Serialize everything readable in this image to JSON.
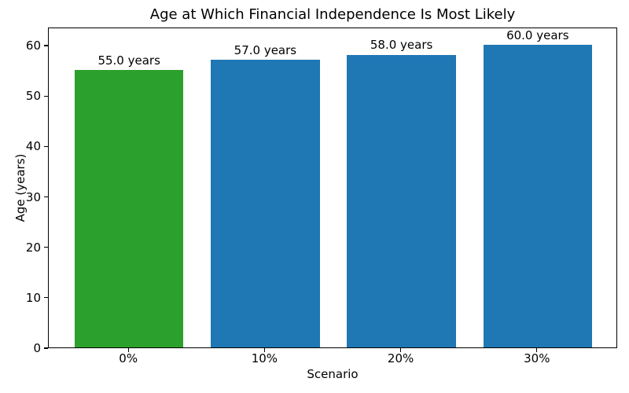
{
  "chart_data": {
    "type": "bar",
    "title": "Age at Which Financial Independence Is Most Likely",
    "xlabel": "Scenario",
    "ylabel": "Age (years)",
    "categories": [
      "0%",
      "10%",
      "20%",
      "30%"
    ],
    "values": [
      55.0,
      57.0,
      58.0,
      60.0
    ],
    "bar_labels": [
      "55.0 years",
      "57.0 years",
      "58.0 years",
      "60.0 years"
    ],
    "bar_colors": [
      "#2ca02c",
      "#1f77b4",
      "#1f77b4",
      "#1f77b4"
    ],
    "yticks": [
      0,
      10,
      20,
      30,
      40,
      50,
      60
    ],
    "ylim": [
      0,
      63.6
    ],
    "xlim_pad": 0.59,
    "bar_width_ratio": 0.8,
    "grid": false,
    "legend_position": "none",
    "text_color": "#000000",
    "spine_color": "#000000",
    "background_color": "#ffffff"
  }
}
